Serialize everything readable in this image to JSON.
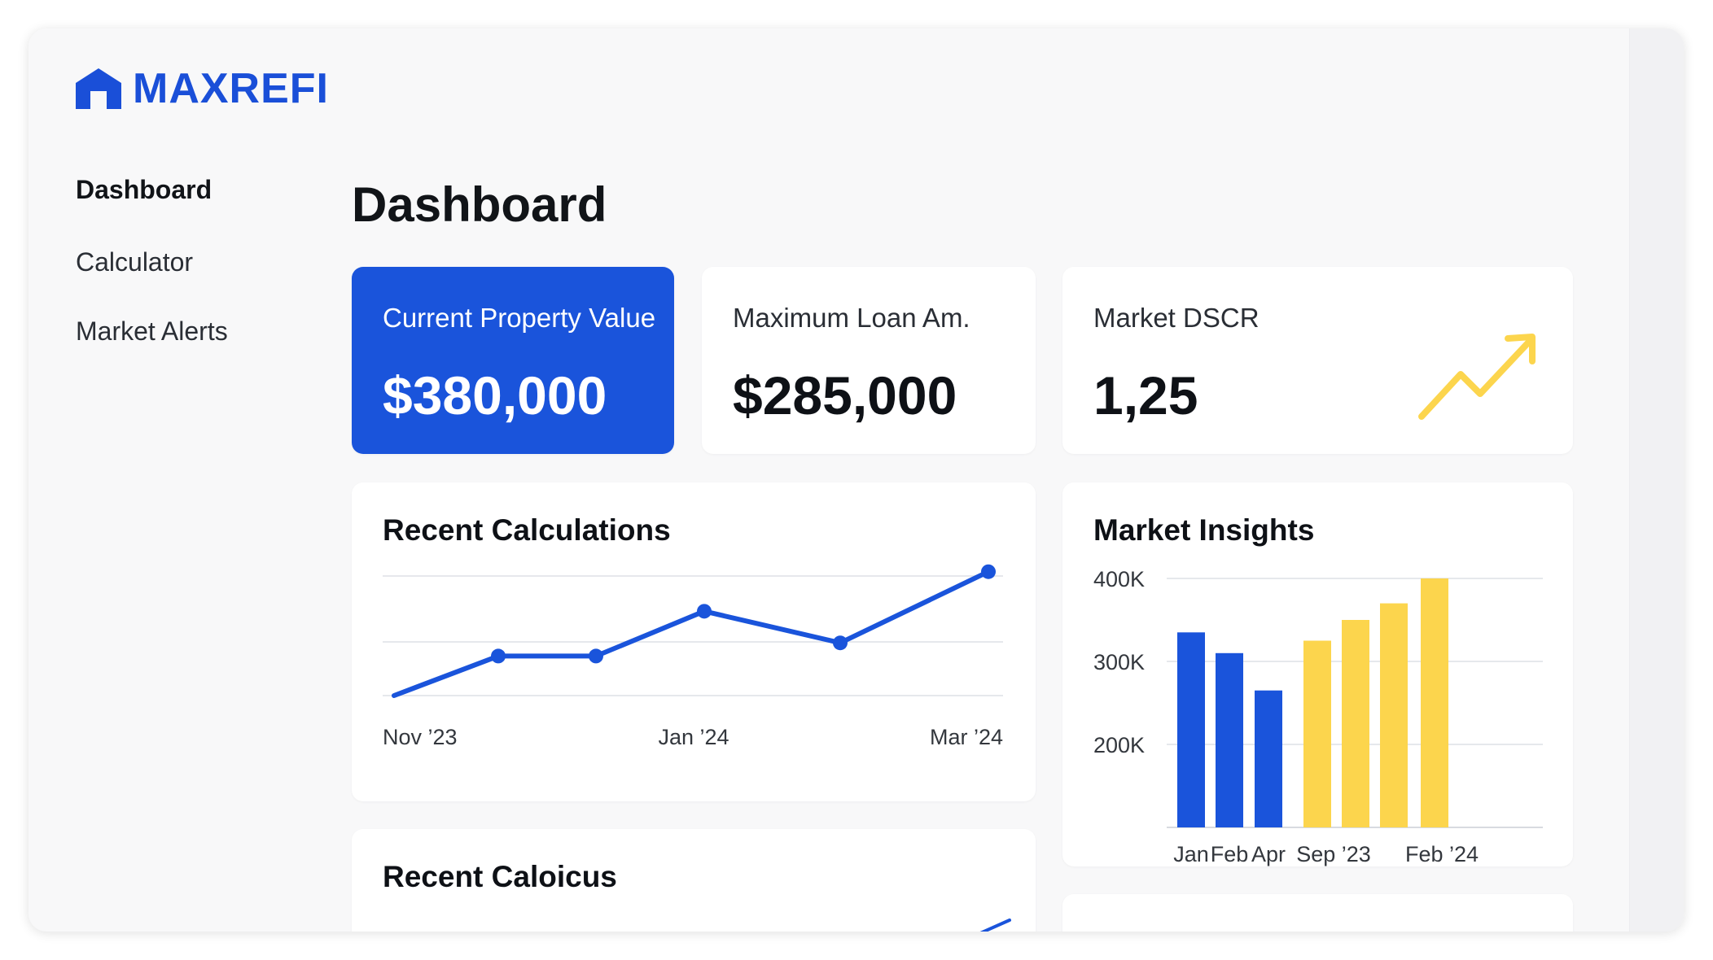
{
  "app": {
    "brand": "MAXREFI"
  },
  "nav": {
    "items": [
      {
        "label": "Dashboard",
        "active": true
      },
      {
        "label": "Calculator",
        "active": false
      },
      {
        "label": "Market Alerts",
        "active": false
      }
    ]
  },
  "page": {
    "title": "Dashboard"
  },
  "stats": {
    "property": {
      "label": "Current Property Value",
      "value": "$380,000"
    },
    "loan": {
      "label": "Maximum Loan Am.",
      "value": "$285,000"
    },
    "dscr": {
      "label": "Market DSCR",
      "value": "1,25"
    }
  },
  "colors": {
    "primary": "#1a54db",
    "accent": "#fcd54d",
    "trend": "#fcd54d"
  },
  "icons": {
    "logo": "house-icon",
    "trend": "trending-up-icon"
  },
  "recent_calculations": {
    "title": "Recent Calculations"
  },
  "market_insights": {
    "title": "Market Insights"
  },
  "recent_caloicus": {
    "title": "Recent Caloicus"
  },
  "chart_data": [
    {
      "type": "line",
      "title": "Recent Calculations",
      "x_tick_labels": [
        "Nov ’23",
        "Jan ’24",
        "Mar ’24"
      ],
      "series": [
        {
          "values": [
            0,
            1.5,
            1.5,
            3.2,
            2.0,
            4.7
          ],
          "color": "#1a54db"
        }
      ],
      "point_markers": [
        false,
        true,
        true,
        true,
        true,
        true
      ],
      "ylim": [
        0,
        5
      ],
      "grid": true
    },
    {
      "type": "bar",
      "title": "Market Insights",
      "categories": [
        "Jan",
        "Feb",
        "Apr",
        "Sep ’23",
        "",
        "",
        "Feb ’24"
      ],
      "values": [
        335000,
        310000,
        265000,
        325000,
        350000,
        370000,
        400000
      ],
      "colors": [
        "#1a54db",
        "#1a54db",
        "#1a54db",
        "#fcd54d",
        "#fcd54d",
        "#fcd54d",
        "#fcd54d"
      ],
      "y_tick_labels": [
        "400K",
        "300K",
        "200K"
      ],
      "y_ticks": [
        400000,
        300000,
        200000
      ],
      "ylim": [
        100000,
        400000
      ],
      "grid": true
    }
  ]
}
